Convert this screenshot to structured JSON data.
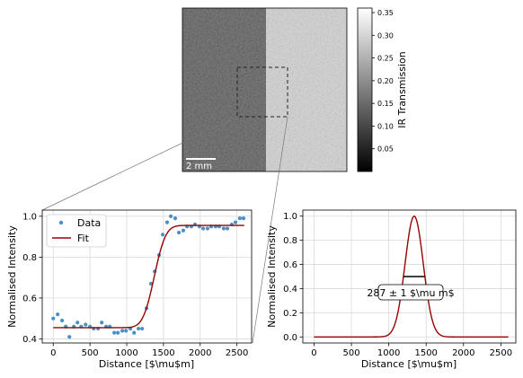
{
  "chart_data": [
    {
      "type": "heatmap",
      "description_scale_bar": "2 mm",
      "colorbar": {
        "label": "IR Transmission",
        "range": [
          0.0,
          0.36
        ],
        "ticks": [
          0.05,
          0.1,
          0.15,
          0.2,
          0.25,
          0.3,
          0.35
        ],
        "tick_labels": [
          "0.05",
          "0.10",
          "0.15",
          "0.20",
          "0.25",
          "0.30",
          "0.35"
        ],
        "colormap": "gray"
      },
      "scale_bar_label": "2 mm",
      "left_region_mean": 0.11,
      "right_region_mean": 0.22
    },
    {
      "type": "scatter",
      "xlabel": "Distance [$\\mu$m]",
      "ylabel": "Normalised Intensity",
      "xlim": [
        -150,
        2700
      ],
      "ylim": [
        0.38,
        1.03
      ],
      "xticks": [
        0,
        500,
        1000,
        1500,
        2000,
        2500
      ],
      "xtick_labels": [
        "0",
        "500",
        "1000",
        "1500",
        "2000",
        "2500"
      ],
      "yticks": [
        0.4,
        0.6,
        0.8,
        1.0
      ],
      "ytick_labels": [
        "0.4",
        "0.6",
        "0.8",
        "1.0"
      ],
      "grid": true,
      "legend": {
        "position": "top-left",
        "entries": [
          "Data",
          "Fit"
        ]
      },
      "series": [
        {
          "name": "Data",
          "kind": "scatter",
          "color": "#4a90c8",
          "x": [
            0,
            60,
            120,
            170,
            220,
            280,
            330,
            380,
            440,
            500,
            550,
            610,
            660,
            720,
            770,
            830,
            880,
            940,
            990,
            1050,
            1100,
            1160,
            1210,
            1270,
            1330,
            1380,
            1440,
            1490,
            1550,
            1600,
            1660,
            1710,
            1770,
            1820,
            1880,
            1930,
            1990,
            2040,
            2100,
            2150,
            2210,
            2260,
            2320,
            2370,
            2430,
            2480,
            2540,
            2590
          ],
          "y": [
            0.5,
            0.52,
            0.49,
            0.46,
            0.41,
            0.46,
            0.48,
            0.46,
            0.47,
            0.46,
            0.45,
            0.45,
            0.48,
            0.46,
            0.46,
            0.43,
            0.43,
            0.44,
            0.44,
            0.45,
            0.43,
            0.45,
            0.45,
            0.55,
            0.67,
            0.73,
            0.81,
            0.91,
            0.97,
            1.0,
            0.99,
            0.92,
            0.93,
            0.95,
            0.95,
            0.96,
            0.95,
            0.94,
            0.94,
            0.95,
            0.95,
            0.95,
            0.94,
            0.94,
            0.96,
            0.97,
            0.99,
            0.99
          ]
        },
        {
          "name": "Fit",
          "kind": "line",
          "color": "#990000",
          "model": "erf-step",
          "x_range": [
            0,
            2600
          ],
          "low": 0.455,
          "high": 0.955,
          "center": 1375,
          "width": 122
        }
      ]
    },
    {
      "type": "line",
      "xlabel": "Distance [$\\mu$m]",
      "ylabel": "Normalised Intensity",
      "xlim": [
        -150,
        2700
      ],
      "ylim": [
        -0.05,
        1.05
      ],
      "xticks": [
        0,
        500,
        1000,
        1500,
        2000,
        2500
      ],
      "xtick_labels": [
        "0",
        "500",
        "1000",
        "1500",
        "2000",
        "2500"
      ],
      "yticks": [
        0.0,
        0.2,
        0.4,
        0.6,
        0.8,
        1.0
      ],
      "ytick_labels": [
        "0.0",
        "0.2",
        "0.4",
        "0.6",
        "0.8",
        "1.0"
      ],
      "grid": true,
      "series": [
        {
          "kind": "line",
          "color": "#990000",
          "model": "gaussian",
          "x_range": [
            0,
            2600
          ],
          "center": 1340,
          "sigma": 122,
          "amplitude": 1.0
        }
      ],
      "fwhm_marker": {
        "x0": 1196,
        "x1": 1484,
        "y": 0.5
      },
      "annotation": "287 ± 1 $\\mu m$"
    }
  ]
}
